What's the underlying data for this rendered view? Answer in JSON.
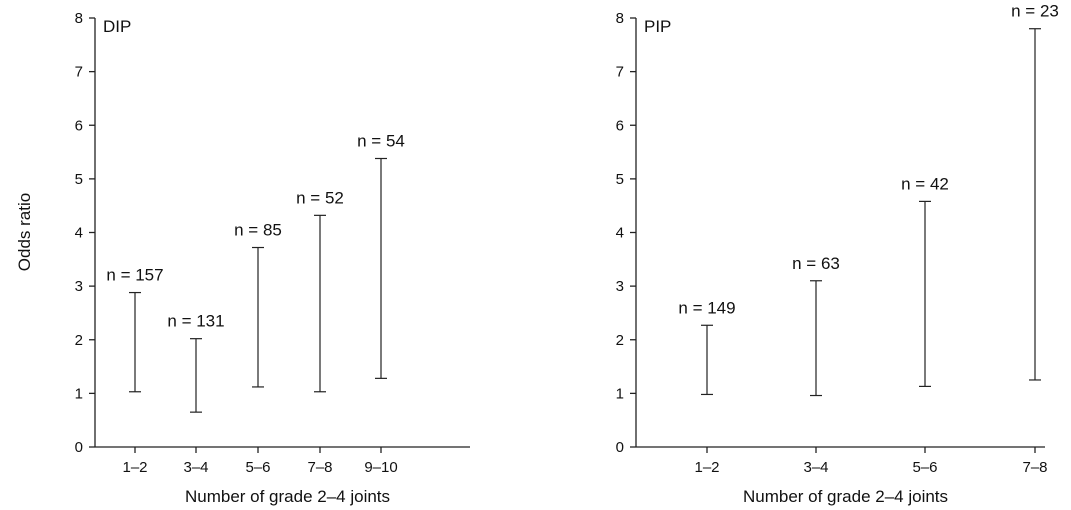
{
  "shared": {
    "ylabel": "Odds ratio",
    "xlabel": "Number of grade 2–4 joints"
  },
  "chart_data": [
    {
      "type": "error-bar",
      "panel_label": "DIP",
      "xlabel": "Number of grade 2–4 joints",
      "ylabel": "Odds ratio",
      "ylim": [
        0,
        8
      ],
      "yticks": [
        "0",
        "1",
        "2",
        "3",
        "4",
        "5",
        "6",
        "7",
        "8"
      ],
      "categories": [
        "1–2",
        "3–4",
        "5–6",
        "7–8",
        "9–10"
      ],
      "lower": [
        1.03,
        0.65,
        1.12,
        1.03,
        1.28
      ],
      "upper": [
        2.88,
        2.02,
        3.72,
        4.32,
        5.38
      ],
      "n_labels": [
        "n = 157",
        "n = 131",
        "n = 85",
        "n = 52",
        "n = 54"
      ]
    },
    {
      "type": "error-bar",
      "panel_label": "PIP",
      "xlabel": "Number of grade 2–4 joints",
      "ylabel": "",
      "ylim": [
        0,
        8
      ],
      "yticks": [
        "0",
        "1",
        "2",
        "3",
        "4",
        "5",
        "6",
        "7",
        "8"
      ],
      "categories": [
        "1–2",
        "3–4",
        "5–6",
        "7–8"
      ],
      "lower": [
        0.98,
        0.96,
        1.13,
        1.25
      ],
      "upper": [
        2.27,
        3.1,
        4.58,
        7.8
      ],
      "n_labels": [
        "n = 149",
        "n = 63",
        "n = 42",
        "n = 23"
      ]
    }
  ]
}
